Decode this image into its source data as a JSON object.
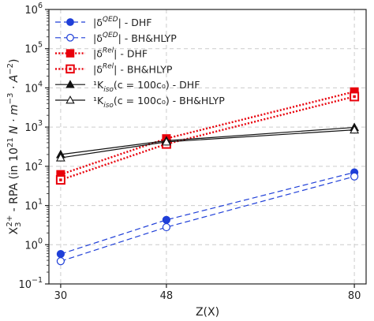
{
  "chart_data": {
    "type": "line",
    "xlabel": "Z(X)",
    "ylabel": "X$_3^{2+}$ - RPA (in $10^{21}$ $N\\cdot m^{-3}\\cdot A^{-2}$)",
    "ylabel_parts": {
      "base": "X",
      "sub": "3",
      "sup": "2+",
      "text": " - RPA (in 10",
      "sup2": "21",
      "unit": " N · m",
      "sup3": "−3",
      "unit2": " · A",
      "sup4": "−2",
      "close": ")"
    },
    "x_ticks": [
      30,
      48,
      80
    ],
    "xlim": [
      28,
      82
    ],
    "yscale": "log",
    "ylim": [
      0.1,
      1000000
    ],
    "y_ticks": [
      {
        "value": 0.1,
        "base": "10",
        "exp": "−1"
      },
      {
        "value": 1,
        "base": "10",
        "exp": "0"
      },
      {
        "value": 10,
        "base": "10",
        "exp": "1"
      },
      {
        "value": 100,
        "base": "10",
        "exp": "2"
      },
      {
        "value": 1000,
        "base": "10",
        "exp": "3"
      },
      {
        "value": 10000,
        "base": "10",
        "exp": "4"
      },
      {
        "value": 100000,
        "base": "10",
        "exp": "5"
      },
      {
        "value": 1000000,
        "base": "10",
        "exp": "6"
      }
    ],
    "grid": true,
    "legend_position": "top-left",
    "x": [
      30,
      48,
      80
    ],
    "series": [
      {
        "name": "|δ^QED| - DHF",
        "legend": {
          "pre": "|δ",
          "sup": "QED",
          "post": "| - DHF"
        },
        "values": [
          0.58,
          4.3,
          70
        ],
        "color": "#1f3fd8",
        "linestyle": "dashed",
        "marker": "circle",
        "fill": true
      },
      {
        "name": "|δ^QED| - BH&HLYP",
        "legend": {
          "pre": "|δ",
          "sup": "QED",
          "post": "| - BH&HLYP"
        },
        "values": [
          0.38,
          2.8,
          55
        ],
        "color": "#1f3fd8",
        "linestyle": "dashed",
        "marker": "circle",
        "fill": false
      },
      {
        "name": "|δ^Rel| - DHF",
        "legend": {
          "pre": "|δ",
          "sup": "Rel",
          "post": "| - DHF"
        },
        "values": [
          62,
          510,
          8000
        ],
        "color": "#e8000b",
        "linestyle": "dotted",
        "marker": "square",
        "fill": true
      },
      {
        "name": "|δ^Rel| - BH&HLYP",
        "legend": {
          "pre": "|δ",
          "sup": "Rel",
          "post": "| - BH&HLYP"
        },
        "values": [
          45,
          370,
          6000
        ],
        "color": "#e8000b",
        "linestyle": "dotted",
        "marker": "square",
        "fill": false
      },
      {
        "name": "¹K_iso(c = 100c₀) - DHF",
        "legend": {
          "pre": "¹K",
          "sub": "iso",
          "post": "(c = 100c₀) - DHF"
        },
        "values": [
          200,
          450,
          980
        ],
        "color": "#111111",
        "linestyle": "solid",
        "marker": "triangle",
        "fill": true
      },
      {
        "name": "¹K_iso(c = 100c₀) - BH&HLYP",
        "legend": {
          "pre": "¹K",
          "sub": "iso",
          "post": "(c = 100c₀) - BH&HLYP"
        },
        "values": [
          165,
          420,
          850
        ],
        "color": "#111111",
        "linestyle": "solid",
        "marker": "triangle",
        "fill": false
      }
    ]
  }
}
